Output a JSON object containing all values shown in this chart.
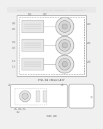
{
  "bg_color": "#f0f0f0",
  "header_color": "#cccccc",
  "fig61_label": "FIG. 61 (Sheet A7)",
  "fig65_label": "FIG. 65",
  "edge_color": "#aaaaaa",
  "dark_edge": "#888888",
  "fill_light": "#e8e8e8",
  "fill_mid": "#d8d8d8",
  "fill_dark": "#c8c8c8",
  "white": "#ffffff",
  "text_color": "#666666",
  "header_fontsize": 1.6,
  "label_fontsize": 2.2,
  "caption_fontsize": 3.0
}
